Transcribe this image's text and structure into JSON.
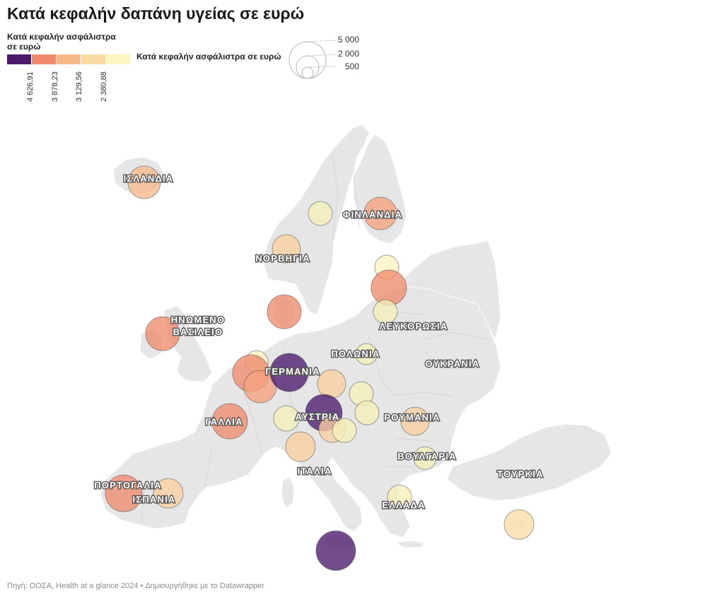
{
  "title": "Κατά κεφαλήν δαπάνη υγείας σε ευρώ",
  "legend": {
    "color_title": "Κατά κεφαλήν ασφάλιστρα σε ευρώ",
    "color_stops": [
      "#4a1a6b",
      "#f08a6c",
      "#f7b98a",
      "#f9d9a4",
      "#fbf5c2"
    ],
    "ticks": [
      "4 626,91",
      "3 878,23",
      "3 129,56",
      "2 380,88"
    ],
    "size_title": "Κατά κεφαλήν ασφάλιστρα σε ευρώ",
    "size_labels": [
      "5 000",
      "2 000",
      "500"
    ]
  },
  "map": {
    "land_color": "#e6e6e6",
    "border_color": "#ffffff",
    "labels": [
      "ΙΣΛΑΝΔΙΑ",
      "ΦΙΝΛΑΝΔΙΑ",
      "ΝΟΡΒΗΓΙΑ",
      "ΗΝΩΜΕΝΟ",
      "ΒΑΣΙΛΕΙΟ",
      "ΛΕΥΚΟΡΩΣΙΑ",
      "ΠΟΛΩΝΙΑ",
      "ΓΕΡΜΑΝΙΑ",
      "ΟΥΚΡΑΝΙΑ",
      "ΓΑΛΛΙΑ",
      "ΑΥΣΤΡΙΑ",
      "ΡΟΥΜΑΝΙΑ",
      "ΒΟΥΛΓΑΡΙΑ",
      "ΙΤΑΛΙΑ",
      "ΤΟΥΡΚΙΑ",
      "ΠΟΡΤΟΓΑΛΙΑ",
      "ΙΣΠΑΝΙΑ",
      "ΕΛΛΑΔΑ"
    ]
  },
  "footer": "Πηγή: ΟΟΣΑ, Health at a glance 2024 • Δημιουργήθηκε με το Datawrapper"
}
